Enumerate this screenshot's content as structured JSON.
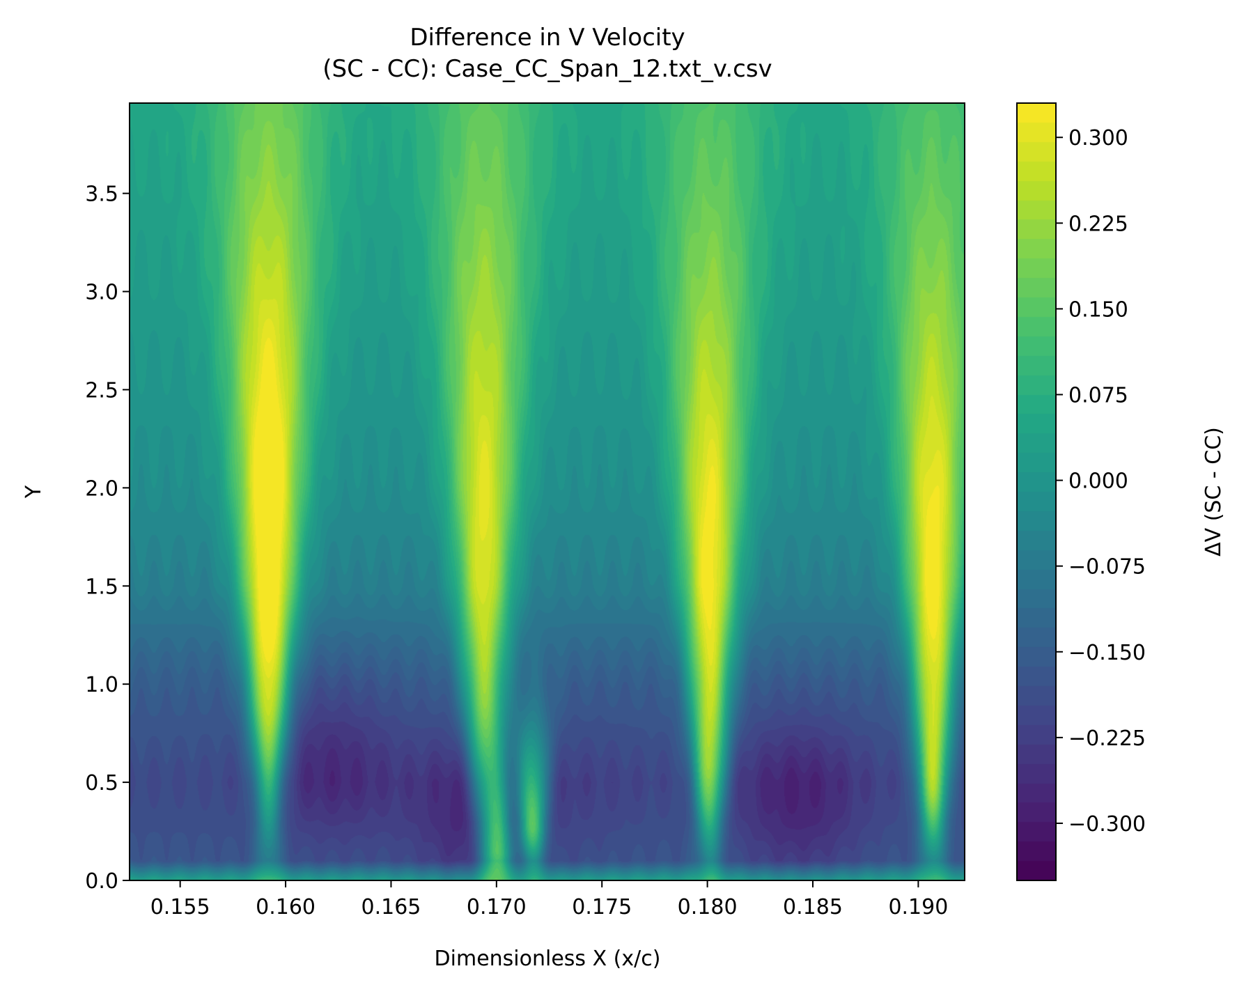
{
  "chart_data": {
    "type": "heatmap",
    "title_line1": "Difference in V Velocity",
    "title_line2": "(SC - CC): Case_CC_Span_12.txt_v.csv",
    "xlabel": "Dimensionless X (x/c)",
    "ylabel": "Y",
    "colorbar_label": "ΔV (SC - CC)",
    "colormap": "viridis",
    "xlim": [
      0.1526,
      0.1922
    ],
    "ylim": [
      0.0,
      3.96
    ],
    "clim": [
      -0.35,
      0.33
    ],
    "x_ticks": [
      0.155,
      0.16,
      0.165,
      0.17,
      0.175,
      0.18,
      0.185,
      0.19
    ],
    "x_tick_labels": [
      "0.155",
      "0.160",
      "0.165",
      "0.170",
      "0.175",
      "0.180",
      "0.185",
      "0.190"
    ],
    "y_ticks": [
      0.0,
      0.5,
      1.0,
      1.5,
      2.0,
      2.5,
      3.0,
      3.5
    ],
    "y_tick_labels": [
      "0.0",
      "0.5",
      "1.0",
      "1.5",
      "2.0",
      "2.5",
      "3.0",
      "3.5"
    ],
    "colorbar_ticks": [
      0.3,
      0.225,
      0.15,
      0.075,
      0.0,
      -0.075,
      -0.15,
      -0.225,
      -0.3
    ],
    "colorbar_tick_labels": [
      "0.300",
      "0.225",
      "0.150",
      "0.075",
      "0.000",
      "−0.075",
      "−0.150",
      "−0.225",
      "−0.300"
    ],
    "base_field": [
      {
        "y": 0.0,
        "value": 0.04
      },
      {
        "y": 0.1,
        "value": -0.17
      },
      {
        "y": 0.5,
        "value": -0.2
      },
      {
        "y": 1.0,
        "value": -0.15
      },
      {
        "y": 1.5,
        "value": -0.06
      },
      {
        "y": 2.0,
        "value": -0.02
      },
      {
        "y": 3.0,
        "value": 0.02
      },
      {
        "y": 3.96,
        "value": 0.05
      }
    ],
    "positive_streaks": [
      {
        "x": 0.1592,
        "peak_y": 0.95,
        "peak_value": 0.31
      },
      {
        "x": 0.1694,
        "peak_y": 1.0,
        "peak_value": 0.22
      },
      {
        "x": 0.1801,
        "peak_y": 0.6,
        "peak_value": 0.25
      },
      {
        "x": 0.1907,
        "peak_y": 0.55,
        "peak_value": 0.26
      },
      {
        "x": 0.1701,
        "peak_y": 0.15,
        "peak_value": 0.2
      },
      {
        "x": 0.1717,
        "peak_y": 0.3,
        "peak_value": 0.22
      }
    ],
    "negative_regions": [
      {
        "x": 0.1622,
        "y": 0.6,
        "value": -0.28
      },
      {
        "x": 0.1843,
        "y": 0.4,
        "value": -0.3
      },
      {
        "x": 0.1745,
        "y": 0.45,
        "value": -0.22
      },
      {
        "x": 0.1692,
        "y": 0.3,
        "value": -0.3
      }
    ]
  }
}
